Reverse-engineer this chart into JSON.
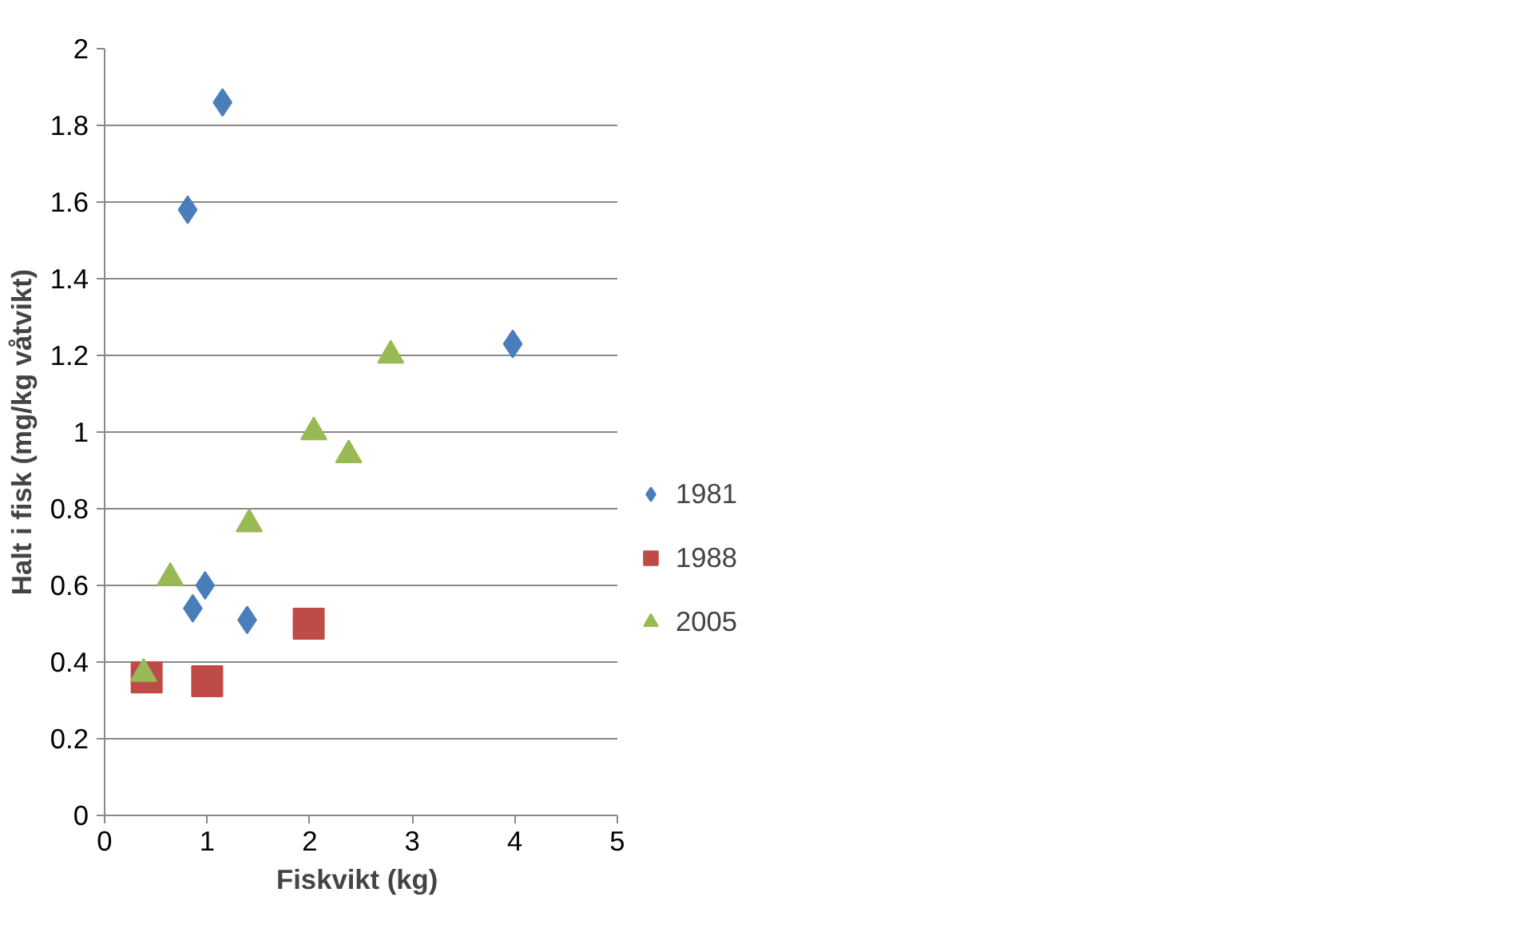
{
  "chart_data": {
    "type": "scatter",
    "xlabel": "Fiskvikt  (kg)",
    "ylabel": "Halt i fisk (mg/kg våtvikt)",
    "xlim": [
      0,
      5
    ],
    "xticks": [
      0,
      1,
      2,
      3,
      4,
      5
    ],
    "ylim": [
      0,
      2
    ],
    "yticks": [
      0,
      0.2,
      0.4,
      0.6,
      0.8,
      1,
      1.2,
      1.4,
      1.6,
      1.8,
      2
    ],
    "grid": "y",
    "legend": "right",
    "series": [
      {
        "name": "1981",
        "color": "#4a7ebb",
        "marker": "diamond",
        "x": [
          0.81,
          1.15,
          0.86,
          0.98,
          1.39,
          3.98
        ],
        "values": [
          1.58,
          1.86,
          0.54,
          0.6,
          0.51,
          1.23
        ]
      },
      {
        "name": "1988",
        "color": "#be4b48",
        "marker": "square",
        "x": [
          0.41,
          1.0,
          1.99
        ],
        "values": [
          0.36,
          0.35,
          0.5
        ]
      },
      {
        "name": "2005",
        "color": "#98b954",
        "marker": "triangle",
        "x": [
          0.38,
          0.64,
          1.41,
          2.04,
          2.38,
          2.79
        ],
        "values": [
          0.37,
          0.62,
          0.76,
          1.0,
          0.94,
          1.2
        ]
      }
    ]
  }
}
